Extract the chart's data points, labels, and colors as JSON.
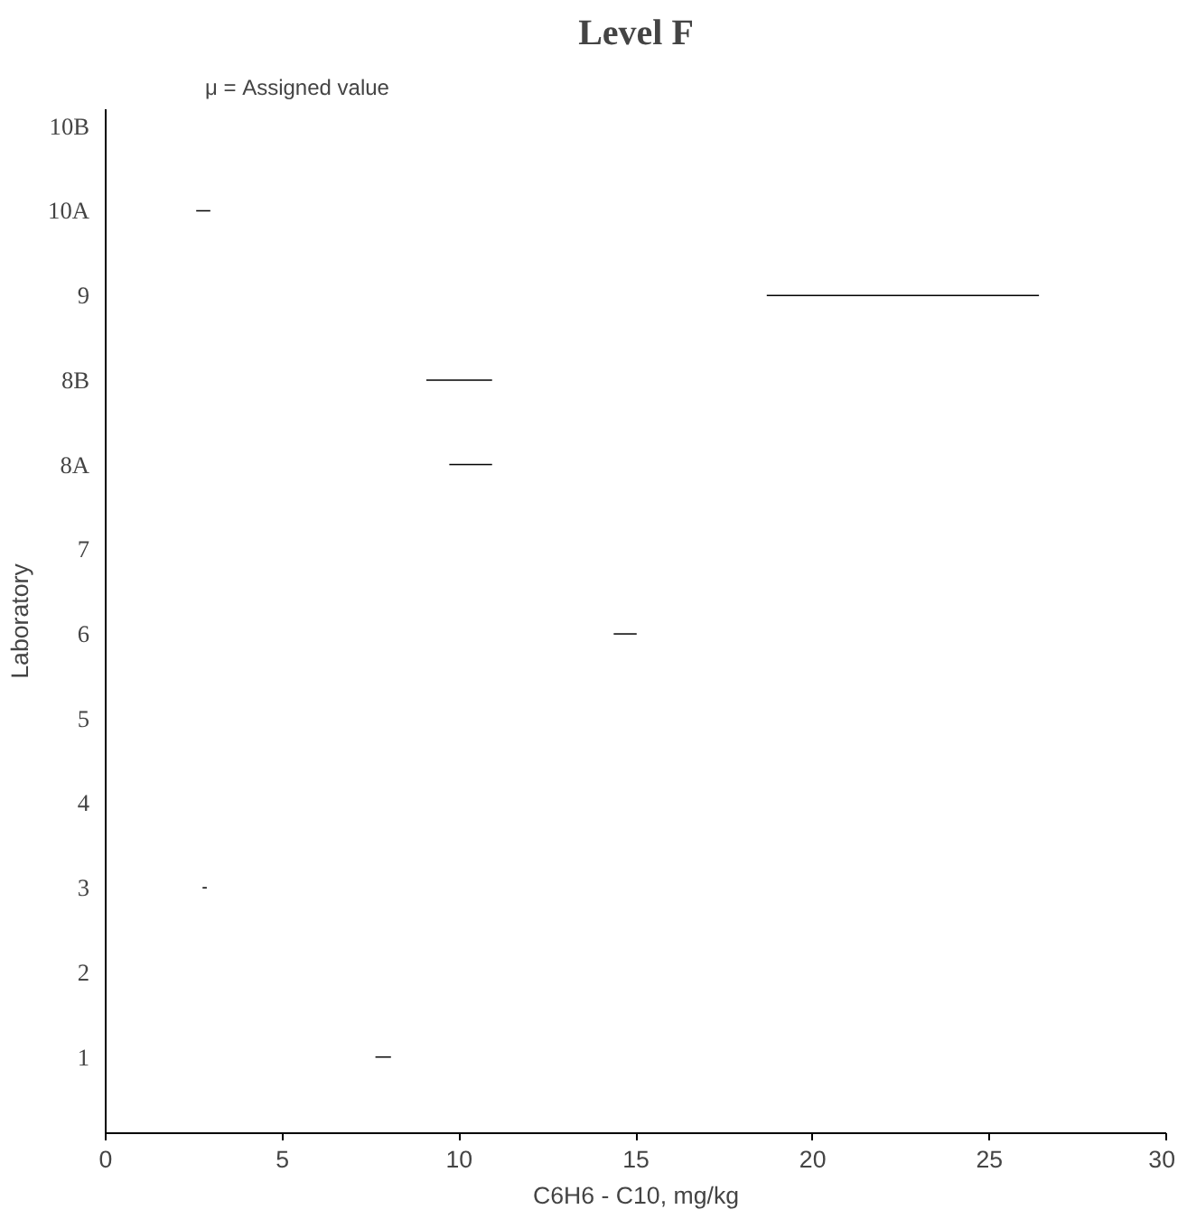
{
  "chart_data": {
    "type": "bar",
    "orientation": "horizontal",
    "title": "Level F",
    "xlabel": "C6H6 - C10, mg/kg",
    "ylabel": "Laboratory",
    "annotations": [
      "μ = Assigned value"
    ],
    "categories": [
      "10B",
      "10A",
      "9",
      "8B",
      "8A",
      "7",
      "6",
      "5",
      "4",
      "3",
      "2",
      "1"
    ],
    "base": [
      null,
      2.56,
      18.7,
      9.07,
      9.72,
      null,
      14.37,
      null,
      null,
      2.74,
      null,
      7.63
    ],
    "values": [
      null,
      0.4,
      7.7,
      1.86,
      1.21,
      null,
      0.65,
      null,
      null,
      0.12,
      null,
      0.44
    ],
    "color": "#000000",
    "xlim": [
      0,
      30
    ],
    "xticks": [
      0,
      5,
      10,
      15,
      20,
      25,
      30
    ],
    "grid": false
  }
}
